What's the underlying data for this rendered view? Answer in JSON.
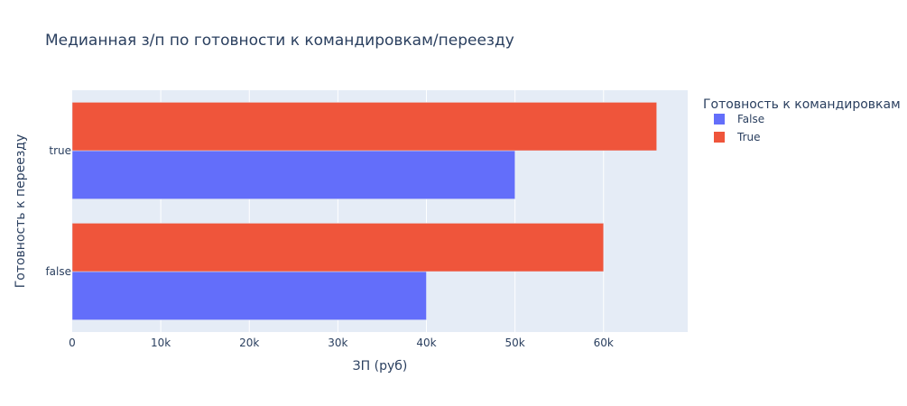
{
  "chart_data": {
    "type": "bar",
    "orientation": "horizontal",
    "barmode": "group",
    "title": "Медианная з/п по готовности к командировкам/переезду",
    "xlabel": "ЗП (руб)",
    "ylabel": "Готовность к переезду",
    "categories": [
      "false",
      "true"
    ],
    "xlim": [
      0,
      69500
    ],
    "x_ticks": [
      0,
      10000,
      20000,
      30000,
      40000,
      50000,
      60000
    ],
    "x_tick_labels": [
      "0",
      "10k",
      "20k",
      "30k",
      "40k",
      "50k",
      "60k"
    ],
    "grid": true,
    "legend_title": "Готовность к командировкам",
    "legend_position": "top-right-outside",
    "series": [
      {
        "name": "False",
        "color": "#636efa",
        "values": [
          40000,
          50000
        ]
      },
      {
        "name": "True",
        "color": "#ef553b",
        "values": [
          60000,
          66000
        ]
      }
    ],
    "colors": {
      "plot_bg": "#e5ecf6",
      "grid": "#ffffff",
      "text": "#2a3f5f"
    }
  }
}
